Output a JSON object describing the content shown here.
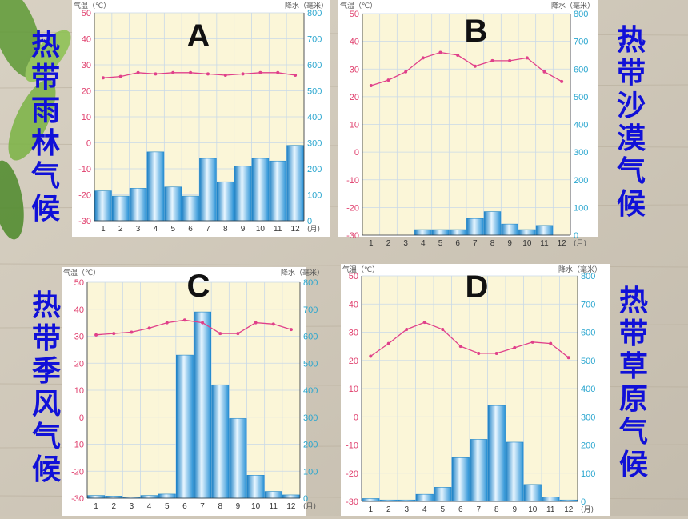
{
  "labels": {
    "A": "热带雨林气候",
    "B": "热带沙漠气候",
    "C": "热带季风气候",
    "D": "热带草原气候"
  },
  "colors": {
    "temp_line": "#e0408a",
    "bar": "#3fa8de",
    "precip_axis": "#2aa6cf",
    "temp_axis": "#e0406e",
    "label_text": "#1010d8"
  },
  "chart_data": [
    {
      "id": "A",
      "type": "bar+line",
      "title": "A",
      "temp_axis_label": "气温（℃）",
      "precip_axis_label": "降水（毫米）",
      "month_unit": "(月)",
      "months": [
        "1",
        "2",
        "3",
        "4",
        "5",
        "6",
        "7",
        "8",
        "9",
        "10",
        "11",
        "12"
      ],
      "temp_ylim": [
        -30,
        50
      ],
      "precip_ylim": [
        0,
        800
      ],
      "temp_ticks": [
        50,
        40,
        30,
        20,
        10,
        0,
        -10,
        -20,
        -30
      ],
      "precip_ticks": [
        800,
        700,
        600,
        500,
        400,
        300,
        200,
        100,
        0
      ],
      "temperature": [
        25,
        25.5,
        27,
        26.5,
        27,
        27,
        26.5,
        26,
        26.5,
        27,
        27,
        26
      ],
      "precipitation": [
        115,
        95,
        125,
        265,
        130,
        95,
        240,
        150,
        210,
        240,
        230,
        290
      ]
    },
    {
      "id": "B",
      "type": "bar+line",
      "title": "B",
      "temp_axis_label": "气温（℃）",
      "precip_axis_label": "降水（毫米）",
      "month_unit": "(月)",
      "months": [
        "1",
        "2",
        "3",
        "4",
        "5",
        "6",
        "7",
        "8",
        "9",
        "10",
        "11",
        "12"
      ],
      "temp_ylim": [
        -30,
        50
      ],
      "precip_ylim": [
        0,
        800
      ],
      "temp_ticks": [
        50,
        40,
        30,
        20,
        10,
        0,
        -10,
        -20,
        -30
      ],
      "precip_ticks": [
        800,
        700,
        600,
        500,
        400,
        300,
        200,
        100,
        0
      ],
      "temperature": [
        24,
        26,
        29,
        34,
        36,
        35,
        31,
        33,
        33,
        34,
        29,
        25.5
      ],
      "precipitation": [
        0,
        0,
        0,
        20,
        20,
        20,
        60,
        85,
        40,
        20,
        35,
        0
      ]
    },
    {
      "id": "C",
      "type": "bar+line",
      "title": "C",
      "temp_axis_label": "气温（℃）",
      "precip_axis_label": "降水（毫米）",
      "month_unit": "(月)",
      "months": [
        "1",
        "2",
        "3",
        "4",
        "5",
        "6",
        "7",
        "8",
        "9",
        "10",
        "11",
        "12"
      ],
      "temp_ylim": [
        -30,
        50
      ],
      "precip_ylim": [
        0,
        800
      ],
      "temp_ticks": [
        50,
        40,
        30,
        20,
        10,
        0,
        -10,
        -20,
        -30
      ],
      "precip_ticks": [
        800,
        700,
        600,
        500,
        400,
        300,
        200,
        100,
        0
      ],
      "temperature": [
        30.5,
        31,
        31.5,
        33,
        35,
        36,
        35,
        31,
        31,
        35,
        34.5,
        32.5
      ],
      "precipitation": [
        10,
        8,
        5,
        10,
        15,
        530,
        690,
        420,
        295,
        85,
        25,
        12
      ]
    },
    {
      "id": "D",
      "type": "bar+line",
      "title": "D",
      "temp_axis_label": "气温（℃）",
      "precip_axis_label": "降水（毫米）",
      "month_unit": "(月)",
      "months": [
        "1",
        "2",
        "3",
        "4",
        "5",
        "6",
        "7",
        "8",
        "9",
        "10",
        "11",
        "12"
      ],
      "temp_ylim": [
        -30,
        50
      ],
      "precip_ylim": [
        0,
        800
      ],
      "temp_ticks": [
        50,
        40,
        30,
        20,
        10,
        0,
        -10,
        -20,
        -30
      ],
      "precip_ticks": [
        800,
        700,
        600,
        500,
        400,
        300,
        200,
        100,
        0
      ],
      "temperature": [
        21.5,
        26,
        31,
        33.5,
        31,
        25,
        22.5,
        22.5,
        24.5,
        26.5,
        26,
        21
      ],
      "precipitation": [
        10,
        5,
        5,
        25,
        50,
        155,
        220,
        340,
        210,
        60,
        15,
        5
      ]
    }
  ]
}
